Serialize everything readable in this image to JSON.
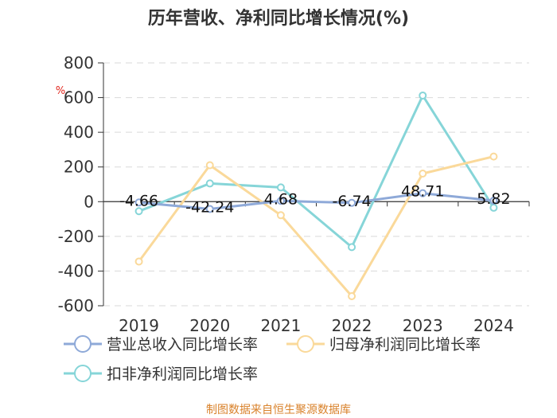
{
  "chart_data": {
    "type": "line",
    "title": "历年营收、净利同比增长情况(%)",
    "unit": "%",
    "categories": [
      "2019",
      "2020",
      "2021",
      "2022",
      "2023",
      "2024"
    ],
    "ylim": [
      -600,
      800
    ],
    "yticks": [
      800,
      600,
      400,
      200,
      0,
      -200,
      -400,
      -600
    ],
    "grid": true,
    "legend_position": "bottom",
    "series": [
      {
        "name": "营业总收入同比增长率",
        "color": "#8ea9d8",
        "values": [
          -4.66,
          -42.24,
          4.68,
          -6.74,
          48.71,
          5.82
        ],
        "labels": [
          "-4.66",
          "-42.24",
          "4.68",
          "-6.74",
          "48.71",
          "5.82"
        ]
      },
      {
        "name": "归母净利润同比增长率",
        "color": "#fad99a",
        "values": [
          -345,
          210,
          -78,
          -545,
          162,
          260
        ]
      },
      {
        "name": "扣非净利润同比增长率",
        "color": "#86d5d8",
        "values": [
          -55,
          105,
          82,
          -262,
          612,
          -35
        ]
      }
    ]
  },
  "footer": {
    "source": "制图数据来自恒生聚源数据库"
  }
}
